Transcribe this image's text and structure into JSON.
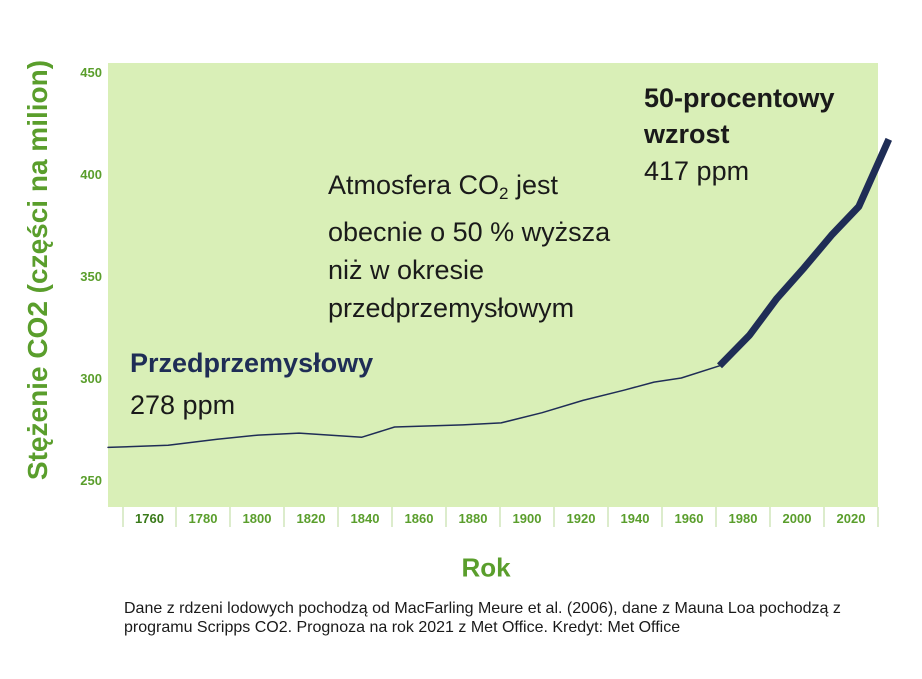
{
  "chart_data": {
    "type": "line",
    "ylabel": "Stężenie CO2 (części na milion)",
    "xlabel": "Rok",
    "ylim": [
      240,
      450
    ],
    "xlim": [
      1735,
      2030
    ],
    "y_ticks": [
      250,
      300,
      350,
      400,
      450
    ],
    "x_ticks": [
      "1760",
      "1780",
      "1800",
      "1820",
      "1840",
      "1860",
      "1880",
      "1900",
      "1920",
      "1940",
      "1960",
      "1980",
      "2000",
      "2020"
    ],
    "colors": {
      "background": "#d9efb7",
      "axis_text": "#5a9e2c",
      "line": "#1f2d56"
    },
    "series": [
      {
        "x": [
          1735,
          1757,
          1775,
          1790,
          1805,
          1828,
          1840,
          1865,
          1879,
          1894,
          1909,
          1924,
          1935,
          1945,
          1959
        ],
        "values": [
          266,
          267,
          270,
          272,
          273,
          271,
          276,
          277,
          278,
          283,
          289,
          294,
          298,
          300,
          306
        ]
      },
      {
        "x": [
          1959,
          1970,
          1980,
          1990,
          2000,
          2010,
          2021
        ],
        "values": [
          306,
          321,
          339,
          354,
          370,
          384,
          417
        ]
      }
    ],
    "annotations": {
      "preindustrial_title": "Przedprzemysłowy",
      "preindustrial_value": "278 ppm",
      "middle_text_a": "Atmosfera CO",
      "middle_text_sub": "2",
      "middle_text_b": " jest obecnie o 50 % wyższa niż w okresie przedprzemysłowym",
      "increase_title": "50-procentowy wzrost",
      "increase_value": "417 ppm"
    }
  },
  "credit": "Dane z rdzeni lodowych pochodzą od MacFarling Meure et al. (2006), dane z Mauna Loa pochodzą z programu Scripps CO2. Prognoza na rok 2021 z Met Office. Kredyt: Met Office"
}
